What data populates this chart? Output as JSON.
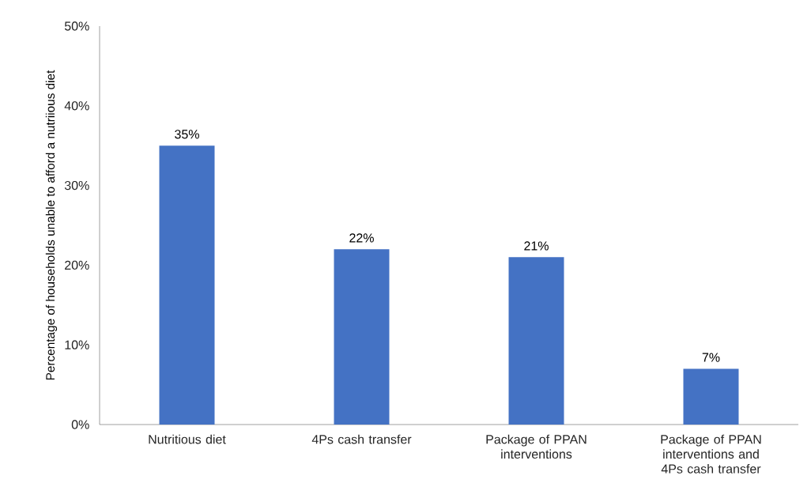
{
  "chart_data": {
    "type": "bar",
    "ylabel": "Percentage of households unable to afford a nutriious diet",
    "categories": [
      "Nutritious diet",
      "4Ps cash transfer",
      "Package of PPAN interventions",
      "Package of PPAN interventions and 4Ps cash transfer"
    ],
    "values": [
      35,
      22,
      21,
      7
    ],
    "value_labels": [
      "35%",
      "22%",
      "21%",
      "7%"
    ],
    "color": "#4472c4",
    "ylim": [
      0,
      50
    ],
    "yticks": [
      {
        "value": 0,
        "label": "0%"
      },
      {
        "value": 10,
        "label": "10%"
      },
      {
        "value": 20,
        "label": "20%"
      },
      {
        "value": 30,
        "label": "30%"
      },
      {
        "value": 40,
        "label": "40%"
      },
      {
        "value": 50,
        "label": "50%"
      }
    ],
    "grid": false
  }
}
